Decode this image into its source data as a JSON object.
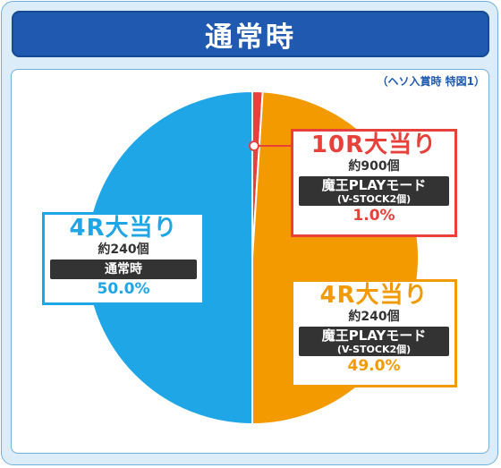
{
  "title": "通常時",
  "note": "（ヘソ入賞時 特図1）",
  "colors": {
    "frame_bg": "#dcedf9",
    "title_bg": "#1f5ab0",
    "red": "#e8403a",
    "orange": "#f29a00",
    "blue": "#1ea6e6"
  },
  "chart_data": {
    "type": "pie",
    "slices": [
      {
        "key": "10r",
        "label": "10R大当り",
        "value": 1.0,
        "color": "#e8403a"
      },
      {
        "key": "4r_orange",
        "label": "4R大当り",
        "value": 49.0,
        "color": "#f29a00"
      },
      {
        "key": "4r_blue",
        "label": "4R大当り",
        "value": 50.0,
        "color": "#1ea6e6"
      }
    ],
    "legend_placement": "callout-boxes"
  },
  "boxes": {
    "r10": {
      "title": "10R大当り",
      "count": "約900個",
      "mode1": "魔王PLAYモード",
      "mode2": "(V-STOCK2個)",
      "pct": "1.0%"
    },
    "r4_orange": {
      "title": "4R大当り",
      "count": "約240個",
      "mode1": "魔王PLAYモード",
      "mode2": "(V-STOCK2個)",
      "pct": "49.0%"
    },
    "r4_blue": {
      "title": "4R大当り",
      "count": "約240個",
      "mode1": "通常時",
      "pct": "50.0%"
    }
  }
}
